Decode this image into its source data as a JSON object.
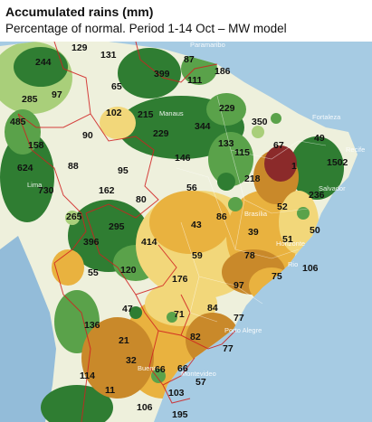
{
  "title": "Accumulated rains (mm)",
  "subtitle": "Percentage of normal. Period 1-14 Oct – MW model",
  "colors": {
    "ocean": "#a6cbe3",
    "very_wet": "#2f7d32",
    "wet": "#5aa24a",
    "slightly_wet": "#a9cf7a",
    "normal": "#eef0dc",
    "slightly_dry": "#f2d77a",
    "dry": "#e9b23f",
    "very_dry": "#c9892a",
    "extreme_dry": "#8b2a2a",
    "border": "#d02020"
  },
  "city_labels": [
    {
      "name": "Paramaribo"
    },
    {
      "name": "Manaus"
    },
    {
      "name": "Fortaleza"
    },
    {
      "name": "Recife"
    },
    {
      "name": "Salvador"
    },
    {
      "name": "Lima"
    },
    {
      "name": "Brasília"
    },
    {
      "name": "Horizonte"
    },
    {
      "name": "Rio"
    },
    {
      "name": "Porto Alegre"
    },
    {
      "name": "Montevideo"
    },
    {
      "name": "Bueno"
    }
  ],
  "values": [
    {
      "id": "v-129",
      "text": "129"
    },
    {
      "id": "v-131",
      "text": "131"
    },
    {
      "id": "v-87",
      "text": "87"
    },
    {
      "id": "v-244",
      "text": "244"
    },
    {
      "id": "v-399",
      "text": "399"
    },
    {
      "id": "v-186",
      "text": "186"
    },
    {
      "id": "v-65",
      "text": "65"
    },
    {
      "id": "v-111",
      "text": "111"
    },
    {
      "id": "v-285",
      "text": "285"
    },
    {
      "id": "v-97a",
      "text": "97"
    },
    {
      "id": "v-102",
      "text": "102"
    },
    {
      "id": "v-215",
      "text": "215"
    },
    {
      "id": "v-229a",
      "text": "229"
    },
    {
      "id": "v-485",
      "text": "485"
    },
    {
      "id": "v-350",
      "text": "350"
    },
    {
      "id": "v-229b",
      "text": "229"
    },
    {
      "id": "v-344",
      "text": "344"
    },
    {
      "id": "v-90",
      "text": "90"
    },
    {
      "id": "v-49",
      "text": "49"
    },
    {
      "id": "v-158",
      "text": "158"
    },
    {
      "id": "v-133",
      "text": "133"
    },
    {
      "id": "v-67",
      "text": "67"
    },
    {
      "id": "v-115",
      "text": "115"
    },
    {
      "id": "v-146",
      "text": "146"
    },
    {
      "id": "v-1502",
      "text": "1502"
    },
    {
      "id": "v-624",
      "text": "624"
    },
    {
      "id": "v-88",
      "text": "88"
    },
    {
      "id": "v-1",
      "text": "1"
    },
    {
      "id": "v-95",
      "text": "95"
    },
    {
      "id": "v-218",
      "text": "218"
    },
    {
      "id": "v-730",
      "text": "730"
    },
    {
      "id": "v-162",
      "text": "162"
    },
    {
      "id": "v-56",
      "text": "56"
    },
    {
      "id": "v-236",
      "text": "236"
    },
    {
      "id": "v-80",
      "text": "80"
    },
    {
      "id": "v-52",
      "text": "52"
    },
    {
      "id": "v-265",
      "text": "265"
    },
    {
      "id": "v-295",
      "text": "295"
    },
    {
      "id": "v-86",
      "text": "86"
    },
    {
      "id": "v-43",
      "text": "43"
    },
    {
      "id": "v-50",
      "text": "50"
    },
    {
      "id": "v-39",
      "text": "39"
    },
    {
      "id": "v-396",
      "text": "396"
    },
    {
      "id": "v-414",
      "text": "414"
    },
    {
      "id": "v-51",
      "text": "51"
    },
    {
      "id": "v-59",
      "text": "59"
    },
    {
      "id": "v-78",
      "text": "78"
    },
    {
      "id": "v-106a",
      "text": "106"
    },
    {
      "id": "v-55",
      "text": "55"
    },
    {
      "id": "v-120",
      "text": "120"
    },
    {
      "id": "v-75",
      "text": "75"
    },
    {
      "id": "v-176",
      "text": "176"
    },
    {
      "id": "v-97b",
      "text": "97"
    },
    {
      "id": "v-47",
      "text": "47"
    },
    {
      "id": "v-84",
      "text": "84"
    },
    {
      "id": "v-71",
      "text": "71"
    },
    {
      "id": "v-77a",
      "text": "77"
    },
    {
      "id": "v-136",
      "text": "136"
    },
    {
      "id": "v-82",
      "text": "82"
    },
    {
      "id": "v-21",
      "text": "21"
    },
    {
      "id": "v-77b",
      "text": "77"
    },
    {
      "id": "v-32",
      "text": "32"
    },
    {
      "id": "v-66a",
      "text": "66"
    },
    {
      "id": "v-66b",
      "text": "66"
    },
    {
      "id": "v-114",
      "text": "114"
    },
    {
      "id": "v-57",
      "text": "57"
    },
    {
      "id": "v-11",
      "text": "11"
    },
    {
      "id": "v-103",
      "text": "103"
    },
    {
      "id": "v-106b",
      "text": "106"
    },
    {
      "id": "v-195",
      "text": "195"
    }
  ]
}
